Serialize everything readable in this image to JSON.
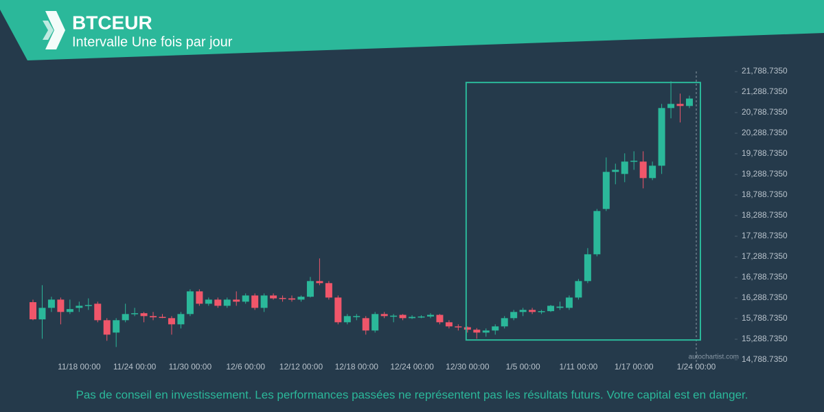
{
  "header": {
    "title": "BTCEUR",
    "subtitle": "Intervalle Une fois par jour"
  },
  "chart_data": {
    "type": "candlestick",
    "categories": [
      null,
      null,
      null,
      null,
      null,
      "11/18 00:00",
      null,
      null,
      null,
      null,
      null,
      "11/24 00:00",
      null,
      null,
      null,
      null,
      null,
      "11/30 00:00",
      null,
      null,
      null,
      null,
      null,
      "12/6 00:00",
      null,
      null,
      null,
      null,
      null,
      "12/12 00:00",
      null,
      null,
      null,
      null,
      null,
      "12/18 00:00",
      null,
      null,
      null,
      null,
      null,
      "12/24 00:00",
      null,
      null,
      null,
      null,
      null,
      "12/30 00:00",
      null,
      null,
      null,
      null,
      null,
      "1/5 00:00",
      null,
      null,
      null,
      null,
      null,
      "1/11 00:00",
      null,
      null,
      null,
      null,
      null,
      "1/17 00:00",
      null,
      null,
      null,
      null,
      null,
      "1/24 00:00"
    ],
    "open": [
      16188,
      15770,
      16050,
      16250,
      15950,
      16050,
      16100,
      16150,
      15750,
      15450,
      15750,
      15900,
      15920,
      15850,
      15830,
      15800,
      15650,
      15900,
      16450,
      16150,
      16250,
      16100,
      16250,
      16200,
      16350,
      16050,
      16350,
      16290,
      16280,
      16250,
      16320,
      16700,
      16650,
      16300,
      15700,
      15830,
      15800,
      15500,
      15900,
      15840,
      15880,
      15800,
      15830,
      15840,
      15880,
      15700,
      15600,
      15580,
      15520,
      15450,
      15500,
      15600,
      15800,
      15950,
      16000,
      15950,
      15970,
      16050,
      16050,
      16300,
      16700,
      17350,
      18450,
      19350,
      19300,
      19600,
      19600,
      19200,
      19500,
      20900,
      21000,
      20950
    ],
    "high": [
      16250,
      16600,
      16320,
      16300,
      16250,
      16200,
      16280,
      16200,
      15800,
      15800,
      16150,
      16050,
      15950,
      15950,
      15900,
      15850,
      15950,
      16500,
      16500,
      16300,
      16300,
      16300,
      16450,
      16400,
      16400,
      16400,
      16400,
      16350,
      16350,
      16350,
      16800,
      17250,
      16700,
      16350,
      15900,
      15900,
      15850,
      15950,
      15950,
      15900,
      15900,
      15870,
      15870,
      15920,
      15900,
      15750,
      15650,
      15600,
      15560,
      15550,
      15650,
      15850,
      16000,
      16050,
      16050,
      16000,
      16120,
      16200,
      16350,
      16750,
      17500,
      18450,
      19700,
      19550,
      19800,
      19850,
      19850,
      19600,
      21000,
      21550,
      21250,
      21200
    ],
    "low": [
      15750,
      15300,
      15950,
      15650,
      15900,
      15950,
      16000,
      15700,
      15250,
      15100,
      15700,
      15850,
      15700,
      15750,
      15800,
      15400,
      15550,
      15850,
      16100,
      16100,
      16050,
      16050,
      16100,
      16150,
      16000,
      15950,
      16250,
      16200,
      16200,
      16200,
      16300,
      16600,
      16250,
      15650,
      15650,
      15750,
      15400,
      15450,
      15800,
      15700,
      15750,
      15780,
      15800,
      15800,
      15650,
      15550,
      15500,
      15450,
      15300,
      15350,
      15400,
      15550,
      15750,
      15850,
      15900,
      15900,
      15950,
      16000,
      16000,
      16250,
      16650,
      17300,
      18400,
      19050,
      19100,
      19400,
      18950,
      19150,
      19300,
      20650,
      20550,
      20900
    ],
    "close": [
      15772,
      16050,
      16250,
      15950,
      16020,
      16100,
      16120,
      15750,
      15400,
      15750,
      15900,
      15920,
      15850,
      15820,
      15810,
      15650,
      15900,
      16450,
      16150,
      16250,
      16100,
      16250,
      16200,
      16350,
      16050,
      16350,
      16280,
      16270,
      16250,
      16320,
      16700,
      16650,
      16300,
      15700,
      15850,
      15850,
      15500,
      15900,
      15850,
      15860,
      15800,
      15830,
      15840,
      15880,
      15700,
      15600,
      15580,
      15520,
      15450,
      15500,
      15600,
      15800,
      15950,
      16000,
      15950,
      15970,
      16100,
      16080,
      16300,
      16700,
      17350,
      18400,
      19350,
      19400,
      19600,
      19620,
      19200,
      19500,
      20900,
      21000,
      20950,
      21130
    ],
    "up_color": "#2bb89a",
    "down_color": "#f0566a",
    "ylim": [
      14788.735,
      21788.735
    ],
    "yticks": [
      {
        "value": 14788.735,
        "label": "14,788.7350"
      },
      {
        "value": 15288.735,
        "label": "15,288.7350"
      },
      {
        "value": 15788.735,
        "label": "15,788.7350"
      },
      {
        "value": 16288.735,
        "label": "16,288.7350"
      },
      {
        "value": 16788.735,
        "label": "16,788.7350"
      },
      {
        "value": 17288.735,
        "label": "17,288.7350"
      },
      {
        "value": 17788.735,
        "label": "17,788.7350"
      },
      {
        "value": 18288.735,
        "label": "18,288.7350"
      },
      {
        "value": 18788.735,
        "label": "18,788.7350"
      },
      {
        "value": 19288.735,
        "label": "19,288.7350"
      },
      {
        "value": 19788.735,
        "label": "19,788.7350"
      },
      {
        "value": 20288.735,
        "label": "20,288.7350"
      },
      {
        "value": 20788.735,
        "label": "20,788.7350"
      },
      {
        "value": 21288.735,
        "label": "21,288.7350"
      },
      {
        "value": 21788.735,
        "label": "21,788.7350"
      }
    ],
    "pattern": {
      "start": "12/30 00:00",
      "high": 21520,
      "low": 15270,
      "color": "#2bb89a"
    },
    "watermark": "autochartist.com"
  },
  "footer": {
    "disclaimer": "Pas de conseil en investissement. Les performances passées ne représentent pas les résultats futurs. Votre capital est en danger."
  }
}
